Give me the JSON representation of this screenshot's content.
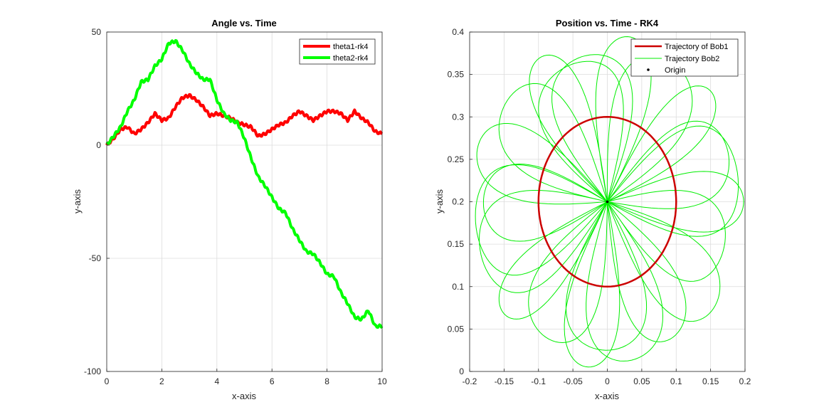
{
  "chart_data": [
    {
      "type": "line",
      "title": "Angle vs. Time",
      "xlabel": "x-axis",
      "ylabel": "y-axis",
      "xlim": [
        0,
        10
      ],
      "ylim": [
        -100,
        50
      ],
      "xticks": [
        "0",
        "2",
        "4",
        "6",
        "8",
        "10"
      ],
      "yticks": [
        "-100",
        "-50",
        "0",
        "50"
      ],
      "grid": true,
      "legend_position": "top-right",
      "series": [
        {
          "name": "theta1-rk4",
          "color": "#ff0000",
          "x": [
            0,
            0.25,
            0.5,
            0.75,
            1,
            1.25,
            1.5,
            1.75,
            2,
            2.25,
            2.5,
            2.75,
            3,
            3.25,
            3.5,
            3.75,
            4,
            4.25,
            4.5,
            4.75,
            5,
            5.25,
            5.5,
            5.75,
            6,
            6.25,
            6.5,
            6.75,
            7,
            7.25,
            7.5,
            7.75,
            8,
            8.25,
            8.5,
            8.75,
            9,
            9.25,
            9.5,
            9.75,
            10
          ],
          "y": [
            0,
            3,
            7,
            8,
            5,
            7,
            10,
            14,
            11,
            12,
            17,
            21,
            22,
            20,
            17,
            13,
            14,
            13,
            12,
            10,
            9,
            8,
            4,
            5,
            7,
            9,
            10,
            13,
            15,
            13,
            11,
            13,
            15,
            15,
            14,
            11,
            15,
            12,
            10,
            6,
            5
          ]
        },
        {
          "name": "theta2-rk4",
          "color": "#00ff00",
          "x": [
            0,
            0.25,
            0.5,
            0.75,
            1,
            1.25,
            1.5,
            1.75,
            2,
            2.25,
            2.5,
            2.75,
            3,
            3.25,
            3.5,
            3.75,
            4,
            4.25,
            4.5,
            4.75,
            5,
            5.25,
            5.5,
            5.75,
            6,
            6.25,
            6.5,
            6.75,
            7,
            7.25,
            7.5,
            7.75,
            8,
            8.25,
            8.5,
            8.75,
            9,
            9.25,
            9.5,
            9.75,
            10
          ],
          "y": [
            0,
            4,
            8,
            15,
            20,
            28,
            29,
            35,
            38,
            45,
            46,
            42,
            36,
            32,
            29,
            29,
            20,
            14,
            11,
            10,
            3,
            -6,
            -14,
            -18,
            -23,
            -28,
            -30,
            -37,
            -42,
            -47,
            -48,
            -52,
            -57,
            -58,
            -65,
            -70,
            -76,
            -77,
            -73,
            -80,
            -80
          ]
        }
      ]
    },
    {
      "type": "line",
      "title": "Position vs. Time - RK4",
      "xlabel": "x-axis",
      "ylabel": "y-axis",
      "xlim": [
        -0.2,
        0.2
      ],
      "ylim": [
        0,
        0.4
      ],
      "xticks": [
        "-0.2",
        "-0.15",
        "-0.1",
        "-0.05",
        "0",
        "0.05",
        "0.1",
        "0.15",
        "0.2"
      ],
      "yticks": [
        "0",
        "0.05",
        "0.1",
        "0.15",
        "0.2",
        "0.25",
        "0.3",
        "0.35",
        "0.4"
      ],
      "grid": true,
      "legend_position": "top-right",
      "series": [
        {
          "name": "Trajectory of Bob1",
          "color": "#cc0000",
          "shape": "circle",
          "center": [
            0,
            0.2
          ],
          "radius": 0.1
        },
        {
          "name": "Trajectory Bob2",
          "color": "#00ee00",
          "shape": "rotating-petal-orbits",
          "center": [
            0,
            0.2
          ],
          "radius_range": [
            0,
            0.2
          ]
        },
        {
          "name": "Origin",
          "color": "#000000",
          "x": [
            0
          ],
          "y": [
            0.2
          ]
        }
      ]
    }
  ]
}
